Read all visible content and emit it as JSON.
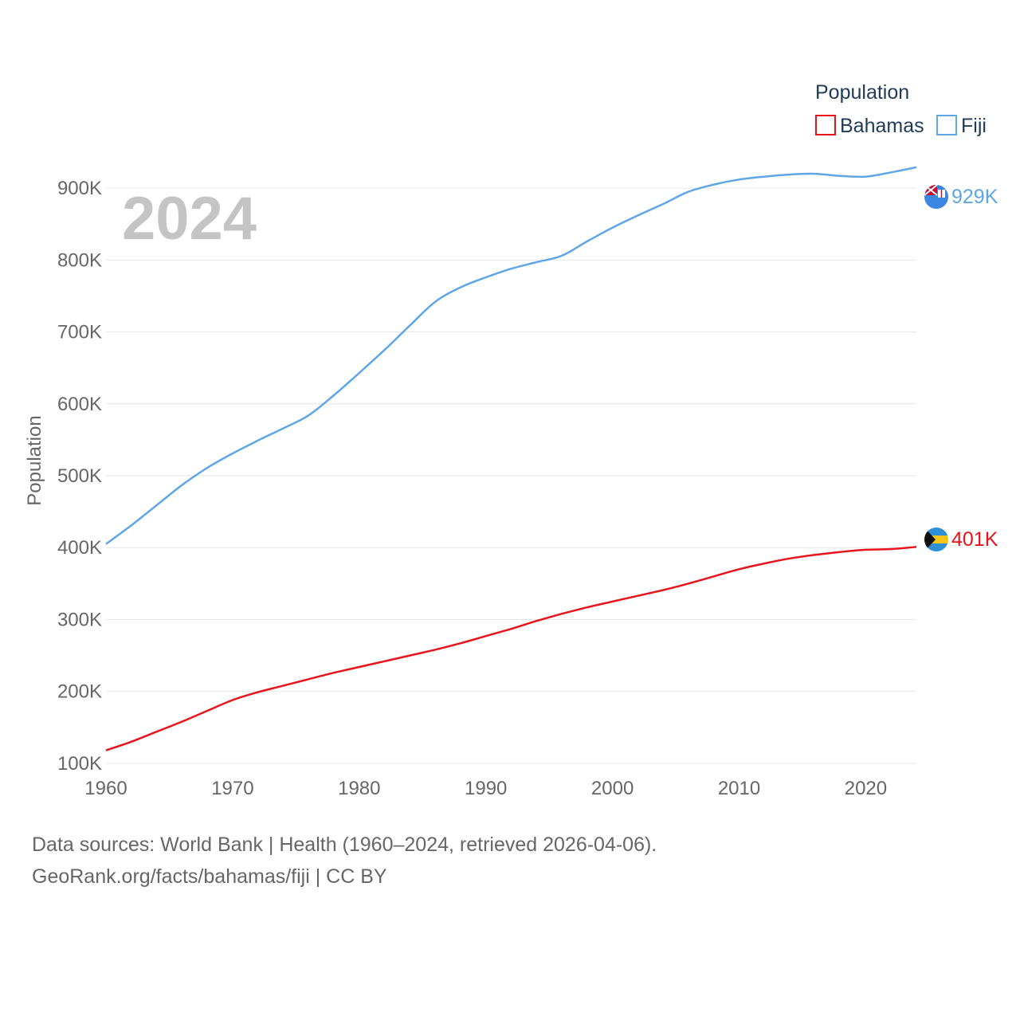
{
  "chart_data": {
    "type": "line",
    "title": "",
    "year_label": "2024",
    "xlabel": "",
    "ylabel": "Population",
    "xlim": [
      1960,
      2024
    ],
    "ylim": [
      50000,
      950000
    ],
    "x_ticks": [
      1960,
      1970,
      1980,
      1990,
      2000,
      2010,
      2020
    ],
    "y_ticks": [
      100000,
      200000,
      300000,
      400000,
      500000,
      600000,
      700000,
      800000,
      900000
    ],
    "y_tick_labels": [
      "100K",
      "200K",
      "300K",
      "400K",
      "500K",
      "600K",
      "700K",
      "800K",
      "900K"
    ],
    "legend": {
      "title": "Population",
      "position": "top-right"
    },
    "series": [
      {
        "name": "Bahamas",
        "color": "#e8141c",
        "end_label": "401K",
        "x": [
          1960,
          1962,
          1964,
          1966,
          1968,
          1970,
          1972,
          1974,
          1976,
          1978,
          1980,
          1982,
          1984,
          1986,
          1988,
          1990,
          1992,
          1994,
          1996,
          1998,
          2000,
          2002,
          2004,
          2006,
          2008,
          2010,
          2012,
          2014,
          2016,
          2018,
          2020,
          2022,
          2024
        ],
        "values": [
          118000,
          130000,
          144000,
          158000,
          173000,
          188000,
          199000,
          208000,
          217000,
          226000,
          234000,
          242000,
          250000,
          258000,
          267000,
          277000,
          287000,
          298000,
          308000,
          317000,
          325000,
          333000,
          341000,
          350000,
          360000,
          370000,
          378000,
          385000,
          390000,
          394000,
          397000,
          398000,
          401000
        ]
      },
      {
        "name": "Fiji",
        "color": "#5ea6e6",
        "end_label": "929K",
        "x": [
          1960,
          1962,
          1964,
          1966,
          1968,
          1970,
          1972,
          1974,
          1976,
          1978,
          1980,
          1982,
          1984,
          1986,
          1988,
          1990,
          1992,
          1994,
          1996,
          1998,
          2000,
          2002,
          2004,
          2006,
          2008,
          2010,
          2012,
          2014,
          2016,
          2018,
          2020,
          2022,
          2024
        ],
        "values": [
          405000,
          431000,
          459000,
          487000,
          511000,
          531000,
          549000,
          566000,
          584000,
          612000,
          643000,
          675000,
          709000,
          742000,
          762000,
          776000,
          788000,
          797000,
          806000,
          826000,
          845000,
          862000,
          878000,
          895000,
          905000,
          912000,
          916000,
          919000,
          920000,
          917000,
          916000,
          922000,
          929000
        ]
      }
    ]
  },
  "source": {
    "line1": "Data sources: World Bank | Health (1960–2024, retrieved 2026-04-06).",
    "line2": "GeoRank.org/facts/bahamas/fiji | CC BY"
  }
}
